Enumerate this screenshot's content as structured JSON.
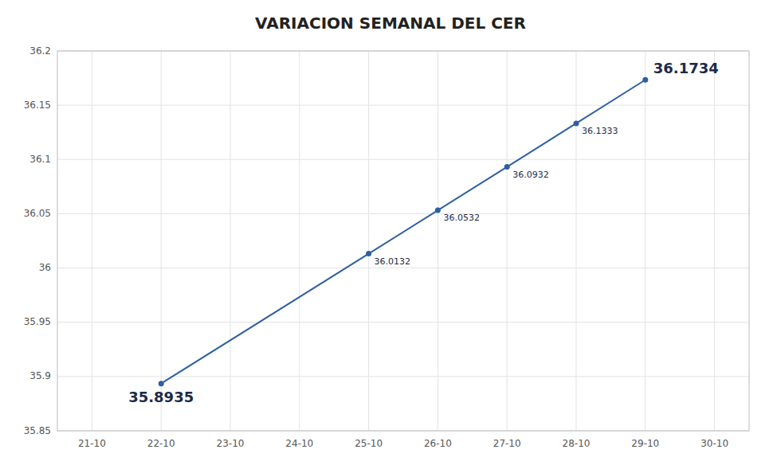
{
  "chart_data": {
    "type": "line",
    "title": "VARIACION SEMANAL DEL CER",
    "x": [
      1,
      4,
      5,
      6,
      7,
      8
    ],
    "values": [
      35.8935,
      36.0132,
      36.0532,
      36.0932,
      36.1333,
      36.1734
    ],
    "color": "#2E5FA3",
    "marker": "circle",
    "xlim": [
      -0.5,
      9.5
    ],
    "xticks": [
      {
        "value": 0,
        "label": "21-10"
      },
      {
        "value": 1,
        "label": "22-10"
      },
      {
        "value": 2,
        "label": "23-10"
      },
      {
        "value": 3,
        "label": "24-10"
      },
      {
        "value": 4,
        "label": "25-10"
      },
      {
        "value": 5,
        "label": "26-10"
      },
      {
        "value": 6,
        "label": "27-10"
      },
      {
        "value": 7,
        "label": "28-10"
      },
      {
        "value": 8,
        "label": "29-10"
      },
      {
        "value": 9,
        "label": "30-10"
      }
    ],
    "ylim": [
      35.85,
      36.2
    ],
    "yticks": [
      35.85,
      35.9,
      35.95,
      36,
      36.05,
      36.1,
      36.15,
      36.2
    ],
    "grid": true,
    "data_labels": true
  }
}
